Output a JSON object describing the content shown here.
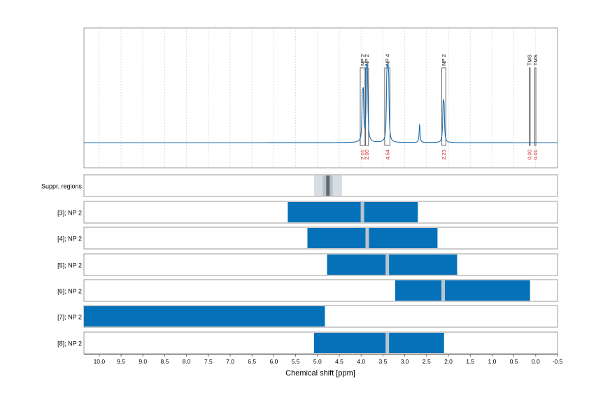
{
  "chart_data": {
    "type": "line",
    "xlabel": "Chemical shift [ppm]",
    "xlim": [
      10.35,
      -0.5
    ],
    "x_ticks": [
      "10.0",
      "9.5",
      "9.0",
      "8.5",
      "8.0",
      "7.5",
      "7.0",
      "6.5",
      "6.0",
      "5.5",
      "5.0",
      "4.5",
      "4.0",
      "3.5",
      "3.0",
      "2.5",
      "2.0",
      "1.5",
      "1.0",
      "0.5",
      "0.0",
      "-0.5"
    ],
    "x_tick_values": [
      10.0,
      9.5,
      9.0,
      8.5,
      8.0,
      7.5,
      7.0,
      6.5,
      6.0,
      5.5,
      5.0,
      4.5,
      4.0,
      3.5,
      3.0,
      2.5,
      2.0,
      1.5,
      1.0,
      0.5,
      0.0,
      -0.5
    ],
    "grid": true,
    "colors": {
      "spectrum": "#1a6eb0",
      "bar": "#0571b9",
      "integral_text": "#d62020",
      "suppr_light": "#d6dde4",
      "suppr_mid": "#b7c3cf",
      "suppr_dark": "#666666",
      "divider": "#b8c4d0"
    },
    "spectrum": {
      "baseline": 0.0,
      "peaks": [
        {
          "ppm": 3.97,
          "height": 0.52
        },
        {
          "ppm": 3.95,
          "height": 0.55
        },
        {
          "ppm": 3.87,
          "height": 1.0
        },
        {
          "ppm": 3.86,
          "height": 0.95
        },
        {
          "ppm": 3.41,
          "height": 0.72
        },
        {
          "ppm": 3.39,
          "height": 0.74
        },
        {
          "ppm": 3.37,
          "height": 0.7
        },
        {
          "ppm": 2.66,
          "height": 0.24
        },
        {
          "ppm": 2.12,
          "height": 0.44
        },
        {
          "ppm": 2.1,
          "height": 0.42
        }
      ]
    },
    "integrals": [
      {
        "label": "NP 2",
        "value": "2.01",
        "from": 4.02,
        "to": 3.91
      },
      {
        "label": "NP 2",
        "value": "2.00",
        "from": 3.9,
        "to": 3.83
      },
      {
        "label": "NP 4",
        "value": "4.54",
        "from": 3.46,
        "to": 3.34
      },
      {
        "label": "NP 2",
        "value": "2.23",
        "from": 2.15,
        "to": 2.06
      },
      {
        "label": "TMS",
        "value": "0.00",
        "from": 0.15,
        "to": 0.13
      },
      {
        "label": "TMS",
        "value": "0.01",
        "from": 0.02,
        "to": 0.0
      }
    ],
    "suppr_region": {
      "label": "Suppr. regions",
      "outer": [
        5.08,
        4.44
      ],
      "inner": [
        4.88,
        4.65
      ],
      "core": [
        4.8,
        4.72
      ]
    },
    "bar_rows": [
      {
        "label": "[3]; NP 2",
        "from": 5.68,
        "to": 2.7,
        "marker": 3.97
      },
      {
        "label": "[4]; NP 2",
        "from": 5.23,
        "to": 2.25,
        "marker": 3.86
      },
      {
        "label": "[5]; NP 2",
        "from": 4.78,
        "to": 1.8,
        "marker": 3.4
      },
      {
        "label": "[6]; NP 2",
        "from": 3.22,
        "to": 0.13,
        "marker": 2.12
      },
      {
        "label": "[7]; NP 2",
        "from": 10.35,
        "to": 4.83,
        "marker": null
      },
      {
        "label": "[8]; NP 2",
        "from": 5.08,
        "to": 2.1,
        "marker": 3.4
      }
    ]
  }
}
